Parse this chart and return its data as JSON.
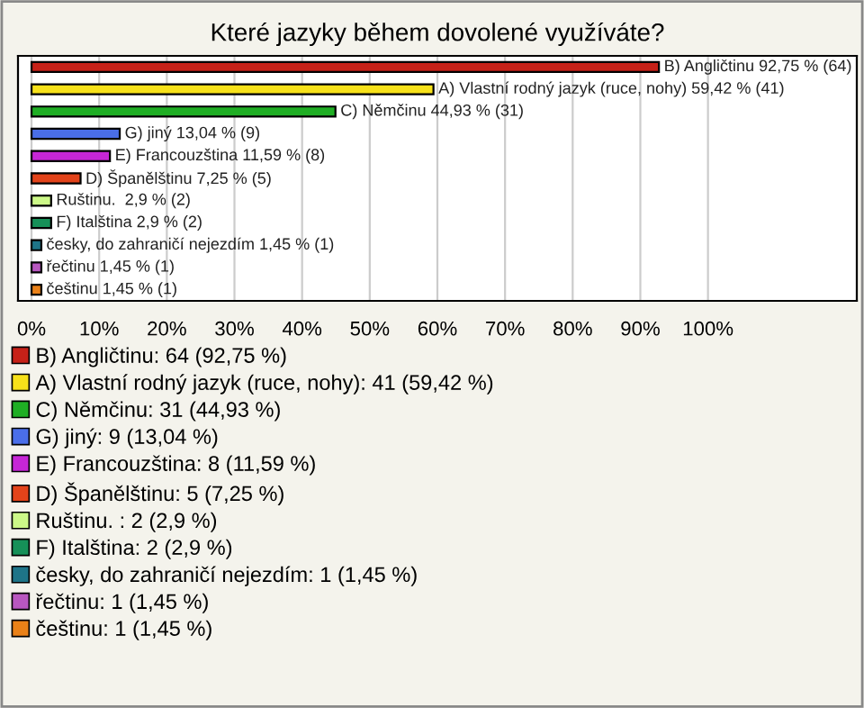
{
  "chart_data": {
    "type": "bar",
    "orientation": "horizontal",
    "title": "Které jazyky během dovolené využíváte?",
    "categories": [
      null,
      null,
      null,
      null,
      null,
      null,
      null,
      null,
      null,
      null,
      null
    ],
    "series": [
      {
        "name": "B) Angličtinu: 64 (92,75 %)",
        "color": "#c62118",
        "values": [
          92.75,
          null,
          null,
          null,
          null,
          null,
          null,
          null,
          null,
          null,
          null
        ],
        "value_labels": [
          "B) Angličtinu 92,75 % (64)",
          null,
          null,
          null,
          null,
          null,
          null,
          null,
          null,
          null,
          null
        ]
      },
      {
        "name": "A) Vlastní rodný jazyk (ruce, nohy): 41 (59,42 %)",
        "color": "#f7e11a",
        "values": [
          null,
          59.42,
          null,
          null,
          null,
          null,
          null,
          null,
          null,
          null,
          null
        ],
        "value_labels": [
          null,
          "A) Vlastní rodný jazyk (ruce, nohy) 59,42 % (41)",
          null,
          null,
          null,
          null,
          null,
          null,
          null,
          null,
          null
        ]
      },
      {
        "name": "C) Němčinu: 31 (44,93 %)",
        "color": "#1fae24",
        "values": [
          null,
          null,
          44.93,
          null,
          null,
          null,
          null,
          null,
          null,
          null,
          null
        ],
        "value_labels": [
          null,
          null,
          "C) Němčinu 44,93 % (31)",
          null,
          null,
          null,
          null,
          null,
          null,
          null,
          null
        ]
      },
      {
        "name": "G) jiný: 9 (13,04 %)",
        "color": "#4a6ee8",
        "values": [
          null,
          null,
          null,
          13.04,
          null,
          null,
          null,
          null,
          null,
          null,
          null
        ],
        "value_labels": [
          null,
          null,
          null,
          "G) jiný 13,04 % (9)",
          null,
          null,
          null,
          null,
          null,
          null,
          null
        ]
      },
      {
        "name": "E) Francouzština: 8 (11,59 %)",
        "color": "#c626d6",
        "values": [
          null,
          null,
          null,
          null,
          11.59,
          null,
          null,
          null,
          null,
          null,
          null
        ],
        "value_labels": [
          null,
          null,
          null,
          null,
          "E) Francouzština 11,59 % (8)",
          null,
          null,
          null,
          null,
          null,
          null
        ]
      },
      {
        "name": "D) Španělštinu: 5 (7,25 %)",
        "color": "#e3431a",
        "values": [
          null,
          null,
          null,
          null,
          null,
          7.25,
          null,
          null,
          null,
          null,
          null
        ],
        "value_labels": [
          null,
          null,
          null,
          null,
          null,
          "D) Španělštinu 7,25 % (5)",
          null,
          null,
          null,
          null,
          null
        ]
      },
      {
        "name": "Ruštinu. : 2 (2,9 %)",
        "color": "#ccf888",
        "values": [
          null,
          null,
          null,
          null,
          null,
          null,
          2.9,
          null,
          null,
          null,
          null
        ],
        "value_labels": [
          null,
          null,
          null,
          null,
          null,
          null,
          "Ruštinu.  2,9 % (2)",
          null,
          null,
          null,
          null
        ]
      },
      {
        "name": "F) Italština: 2 (2,9 %)",
        "color": "#169058",
        "values": [
          null,
          null,
          null,
          null,
          null,
          null,
          null,
          2.9,
          null,
          null,
          null
        ],
        "value_labels": [
          null,
          null,
          null,
          null,
          null,
          null,
          null,
          "F) Italština 2,9 % (2)",
          null,
          null,
          null
        ]
      },
      {
        "name": "česky, do zahraničí nejezdím: 1 (1,45 %)",
        "color": "#1e7488",
        "values": [
          null,
          null,
          null,
          null,
          null,
          null,
          null,
          null,
          1.45,
          null,
          null
        ],
        "value_labels": [
          null,
          null,
          null,
          null,
          null,
          null,
          null,
          null,
          "česky, do zahraničí nejezdím 1,45 % (1)",
          null,
          null
        ]
      },
      {
        "name": "řečtinu: 1 (1,45 %)",
        "color": "#b857c0",
        "values": [
          null,
          null,
          null,
          null,
          null,
          null,
          null,
          null,
          null,
          1.45,
          null
        ],
        "value_labels": [
          null,
          null,
          null,
          null,
          null,
          null,
          null,
          null,
          null,
          "řečtinu 1,45 % (1)",
          null
        ]
      },
      {
        "name": "češtinu: 1 (1,45 %)",
        "color": "#ea8118",
        "values": [
          null,
          null,
          null,
          null,
          null,
          null,
          null,
          null,
          null,
          null,
          1.45
        ],
        "value_labels": [
          null,
          null,
          null,
          null,
          null,
          null,
          null,
          null,
          null,
          null,
          "češtinu 1,45 % (1)"
        ]
      }
    ],
    "xlim": [
      -2,
      122
    ],
    "xticks": [
      {
        "value": 0,
        "label": "0%"
      },
      {
        "value": 10,
        "label": "10%"
      },
      {
        "value": 20,
        "label": "20%"
      },
      {
        "value": 30,
        "label": "30%"
      },
      {
        "value": 40,
        "label": "40%"
      },
      {
        "value": 50,
        "label": "50%"
      },
      {
        "value": 60,
        "label": "60%"
      },
      {
        "value": 70,
        "label": "70%"
      },
      {
        "value": 80,
        "label": "80%"
      },
      {
        "value": 90,
        "label": "90%"
      },
      {
        "value": 100,
        "label": "100%"
      }
    ],
    "grid": "x",
    "legend": "bottom",
    "tick_labels": "x"
  }
}
